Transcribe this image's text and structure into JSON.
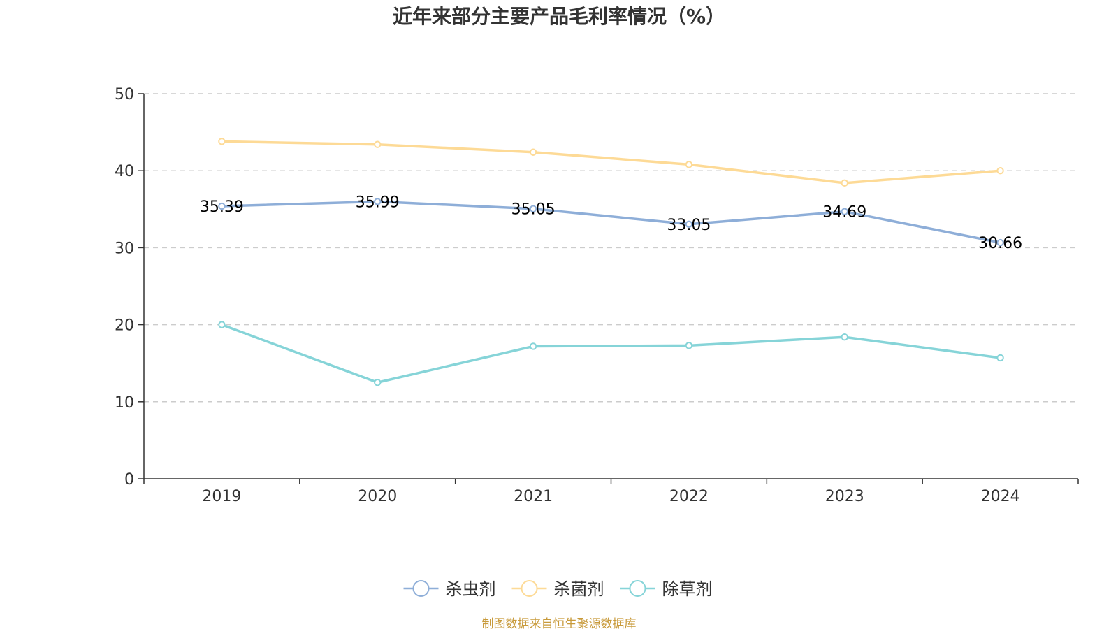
{
  "chart_data": {
    "type": "line",
    "title": "近年来部分主要产品毛利率情况（%）",
    "xlabel": "",
    "ylabel": "",
    "categories": [
      "2019",
      "2020",
      "2021",
      "2022",
      "2023",
      "2024"
    ],
    "ylim": [
      0,
      50
    ],
    "yticks": [
      "0",
      "10",
      "20",
      "30",
      "40",
      "50"
    ],
    "grid": true,
    "legend_position": "bottom-center",
    "series": [
      {
        "name": "杀虫剂",
        "color": "#8eaed8",
        "values": [
          35.39,
          35.99,
          35.05,
          33.05,
          34.69,
          30.66
        ],
        "labels": [
          "35.39",
          "35.99",
          "35.05",
          "33.05",
          "34.69",
          "30.66"
        ],
        "show_labels": true
      },
      {
        "name": "杀菌剂",
        "color": "#fdda96",
        "values": [
          43.8,
          43.4,
          42.4,
          40.8,
          38.4,
          40.0
        ],
        "show_labels": false
      },
      {
        "name": "除草剂",
        "color": "#86d4d8",
        "values": [
          20.0,
          12.5,
          17.2,
          17.3,
          18.4,
          15.7
        ],
        "show_labels": false
      }
    ],
    "source": "制图数据来自恒生聚源数据库"
  }
}
